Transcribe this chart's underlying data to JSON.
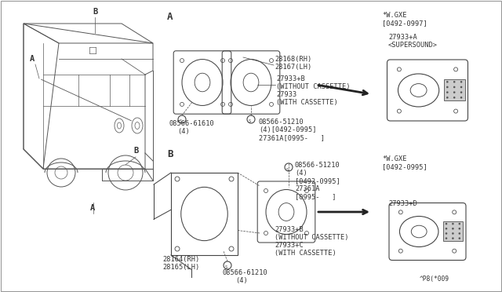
{
  "background": "#ffffff",
  "diagram_color": "#444444",
  "text_color": "#333333",
  "parts": {
    "top_speaker_rh": "28168(RH)",
    "top_speaker_lh": "28167(LH)",
    "top_speaker_part1": "27933+B",
    "top_speaker_part1_note": "(WITHOUT CASSETTE)",
    "top_speaker_part2": "27933",
    "top_speaker_part2_note": "(WITH CASSETTE)",
    "top_screw_left": "08566-61610",
    "top_screw_left_qty": "(4)",
    "top_screw_right": "08566-51210",
    "top_screw_right_q": "(4)[0492-0995]",
    "top_bracket": "27361A[0995-   ]",
    "bottom_speaker_rh": "28164(RH)",
    "bottom_speaker_lh": "28165(LH)",
    "bottom_speaker_part1": "27933+B",
    "bottom_speaker_part1_note": "(WITHOUT CASSETTE)",
    "bottom_speaker_part2": "27933+C",
    "bottom_speaker_part2_note": "(WITH CASSETTE)",
    "bottom_screw_left": "08566-61210",
    "bottom_screw_left_qty": "(4)",
    "bottom_screw_right": "08566-51210",
    "bottom_screw_right_q1": "(4)",
    "bottom_screw_right_q2": "[0492-0995]",
    "bottom_bracket1": "27361A",
    "bottom_bracket2": "[0995-   ]",
    "wgxe_top_label": "*W.GXE",
    "wgxe_top_date": "[0492-0997]",
    "wgxe_top_part": "27933+A",
    "wgxe_top_note": "<SUPERSOUND>",
    "wgxe_bot_label": "*W.GXE",
    "wgxe_bot_date": "[0492-0995]",
    "wgxe_bot_part": "27933+D",
    "ref_code": "^P8(*009"
  }
}
